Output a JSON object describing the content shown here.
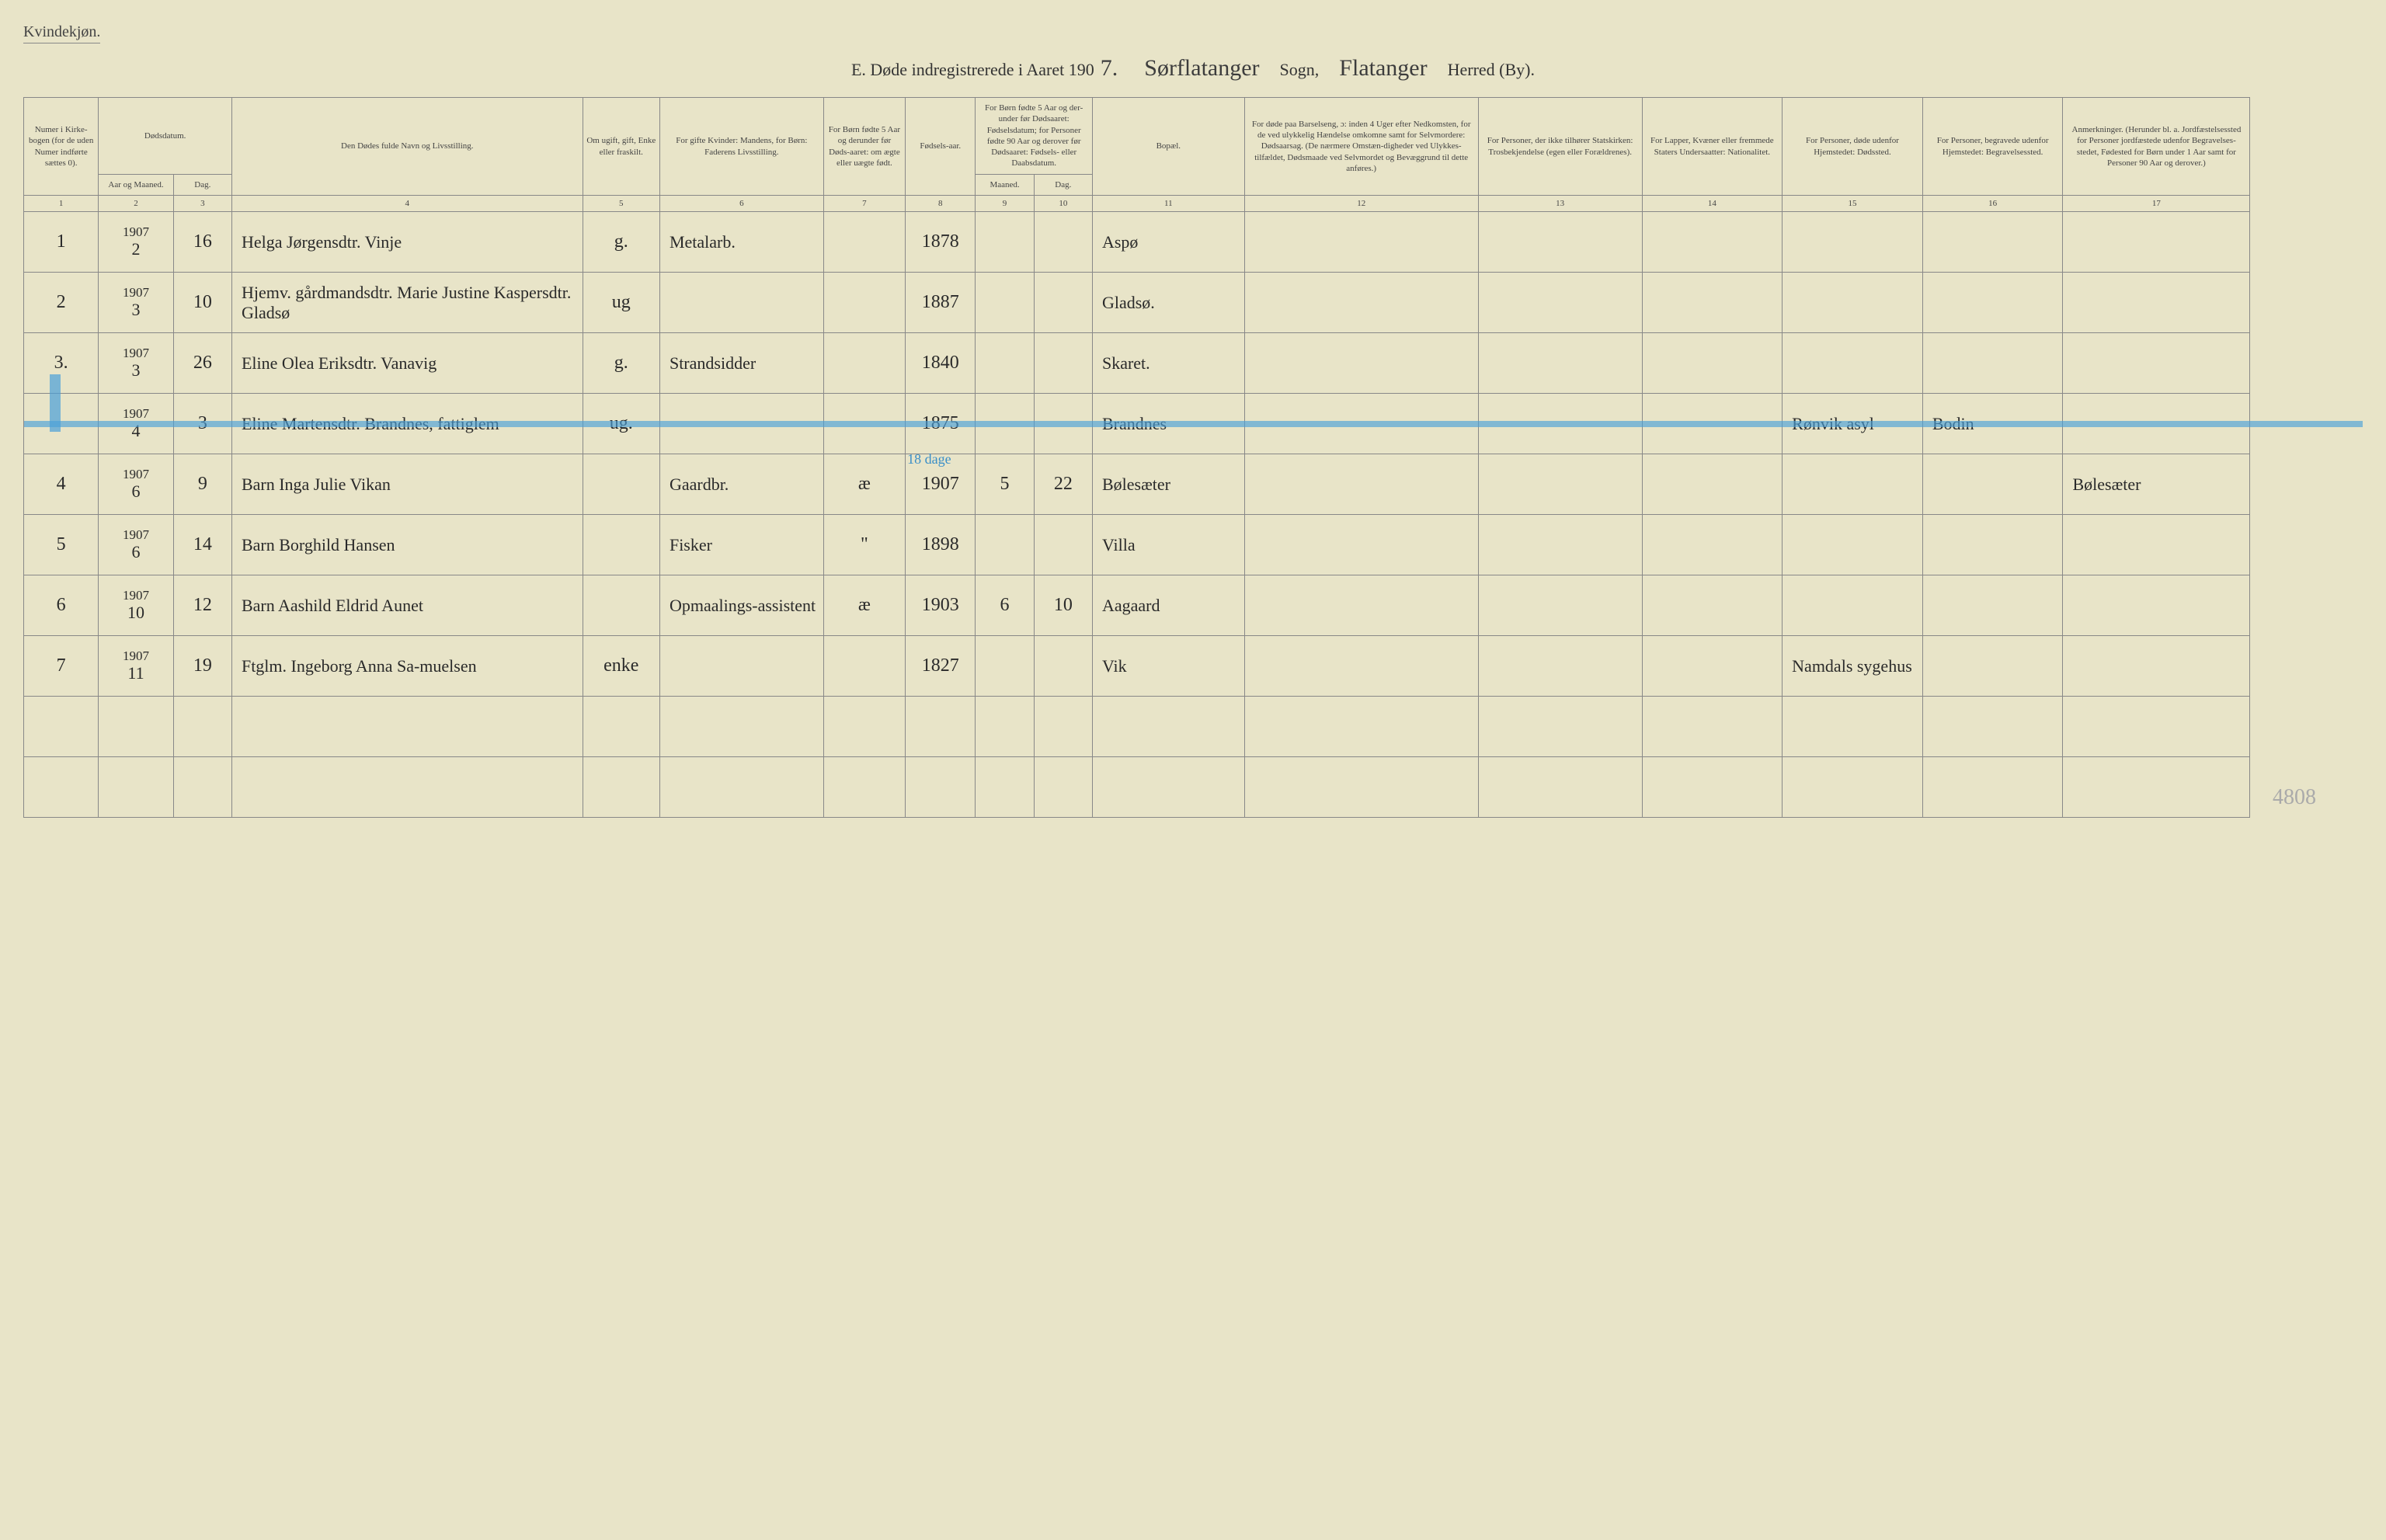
{
  "top_label": "Kvindekjøn.",
  "header": {
    "title_prefix": "E.  Døde indregistrerede i Aaret 190",
    "year_suffix": "7.",
    "sogn_label": "Sogn,",
    "sogn_value": "Sørflatanger",
    "herred_label": "Herred (By).",
    "herred_value": "Flatanger"
  },
  "columns": {
    "c1": "Numer i Kirke-bogen (for de uden Numer indførte sættes 0).",
    "c2a": "Dødsdatum.",
    "c2": "Aar og Maaned.",
    "c3": "Dag.",
    "c4": "Den Dødes fulde Navn og Livsstilling.",
    "c5": "Om ugift, gift, Enke eller fraskilt.",
    "c6": "For gifte Kvinder: Mandens, for Børn: Faderens Livsstilling.",
    "c7": "For Børn fødte 5 Aar og derunder før Døds-aaret: om ægte eller uægte født.",
    "c8": "Fødsels-aar.",
    "c9a": "For Børn fødte 5 Aar og der-under før Dødsaaret: Fødselsdatum; for Personer fødte 90 Aar og derover før Dødsaaret: Fødsels- eller Daabsdatum.",
    "c9": "Maaned.",
    "c10": "Dag.",
    "c11": "Bopæl.",
    "c12": "For døde paa Barselseng, ɔ: inden 4 Uger efter Nedkomsten, for de ved ulykkelig Hændelse omkomne samt for Selvmordere: Dødsaarsag. (De nærmere Omstæn-digheder ved Ulykkes-tilfældet, Dødsmaade ved Selvmordet og Bevæggrund til dette anføres.)",
    "c13": "For Personer, der ikke tilhører Statskirken: Trosbekjendelse (egen eller Forældrenes).",
    "c14": "For Lapper, Kvæner eller fremmede Staters Undersaatter: Nationalitet.",
    "c15": "For Personer, døde udenfor Hjemstedet: Dødssted.",
    "c16": "For Personer, begravede udenfor Hjemstedet: Begravelsessted.",
    "c17": "Anmerkninger. (Herunder bl. a. Jordfæstelsessted for Personer jordfæstede udenfor Begravelses-stedet, Fødested for Børn under 1 Aar samt for Personer 90 Aar og derover.)"
  },
  "colnums": [
    "1",
    "2",
    "3",
    "4",
    "5",
    "6",
    "7",
    "8",
    "9",
    "10",
    "11",
    "12",
    "13",
    "14",
    "15",
    "16",
    "17"
  ],
  "rows": [
    {
      "num": "1",
      "year": "1907",
      "month": "2",
      "day": "16",
      "name": "Helga Jørgensdtr. Vinje",
      "status": "g.",
      "occupation": "Metalarb.",
      "legit": "",
      "byear": "1878",
      "bmon": "",
      "bday": "",
      "place": "Aspø",
      "cause": "",
      "faith": "",
      "nat": "",
      "deathplace": "",
      "burial": "",
      "remarks": ""
    },
    {
      "num": "2",
      "year": "1907",
      "month": "3",
      "day": "10",
      "name": "Hjemv. gårdmandsdtr. Marie Justine Kaspersdtr. Gladsø",
      "status": "ug",
      "occupation": "",
      "legit": "",
      "byear": "1887",
      "bmon": "",
      "bday": "",
      "place": "Gladsø.",
      "cause": "",
      "faith": "",
      "nat": "",
      "deathplace": "",
      "burial": "",
      "remarks": ""
    },
    {
      "num": "3.",
      "year": "1907",
      "month": "3",
      "day": "26",
      "name": "Eline Olea Eriksdtr. Vanavig",
      "status": "g.",
      "occupation": "Strandsidder",
      "legit": "",
      "byear": "1840",
      "bmon": "",
      "bday": "",
      "place": "Skaret.",
      "cause": "",
      "faith": "",
      "nat": "",
      "deathplace": "",
      "burial": "",
      "remarks": ""
    },
    {
      "num": "",
      "year": "1907",
      "month": "4",
      "day": "3",
      "name": "Eline Martensdtr. Brandnes, fattiglem",
      "status": "ug.",
      "occupation": "",
      "legit": "",
      "byear": "1875",
      "bmon": "",
      "bday": "",
      "place": "Brandnes",
      "cause": "",
      "faith": "",
      "nat": "",
      "deathplace": "Rønvik asyl",
      "burial": "Bodin",
      "remarks": "",
      "struck": true
    },
    {
      "num": "4",
      "year": "1907",
      "month": "6",
      "day": "9",
      "name": "Barn Inga Julie Vikan",
      "status": "",
      "occupation": "Gaardbr.",
      "legit": "æ",
      "byear": "1907",
      "bmon": "5",
      "bday": "22",
      "place": "Bølesæter",
      "cause": "",
      "faith": "",
      "nat": "",
      "deathplace": "",
      "burial": "",
      "remarks": "Bølesæter",
      "annot": "18 dage"
    },
    {
      "num": "5",
      "year": "1907",
      "month": "6",
      "day": "14",
      "name": "Barn Borghild Hansen",
      "status": "",
      "occupation": "Fisker",
      "legit": "\"",
      "byear": "1898",
      "bmon": "",
      "bday": "",
      "place": "Villa",
      "cause": "",
      "faith": "",
      "nat": "",
      "deathplace": "",
      "burial": "",
      "remarks": ""
    },
    {
      "num": "6",
      "year": "1907",
      "month": "10",
      "day": "12",
      "name": "Barn Aashild Eldrid Aunet",
      "status": "",
      "occupation": "Opmaalings-assistent",
      "legit": "æ",
      "byear": "1903",
      "bmon": "6",
      "bday": "10",
      "place": "Aagaard",
      "cause": "",
      "faith": "",
      "nat": "",
      "deathplace": "",
      "burial": "",
      "remarks": ""
    },
    {
      "num": "7",
      "year": "1907",
      "month": "11",
      "day": "19",
      "name": "Ftglm. Ingeborg Anna Sa-muelsen",
      "status": "enke",
      "occupation": "",
      "legit": "",
      "byear": "1827",
      "bmon": "",
      "bday": "",
      "place": "Vik",
      "cause": "",
      "faith": "",
      "nat": "",
      "deathplace": "Namdals sygehus",
      "burial": "",
      "remarks": ""
    },
    {
      "empty": true
    },
    {
      "empty": true
    }
  ],
  "corner_number": "4808",
  "colors": {
    "paper": "#e8e4c8",
    "rule": "#888888",
    "ink": "#2a2a2a",
    "blue_pencil": "#4a9fd8"
  }
}
